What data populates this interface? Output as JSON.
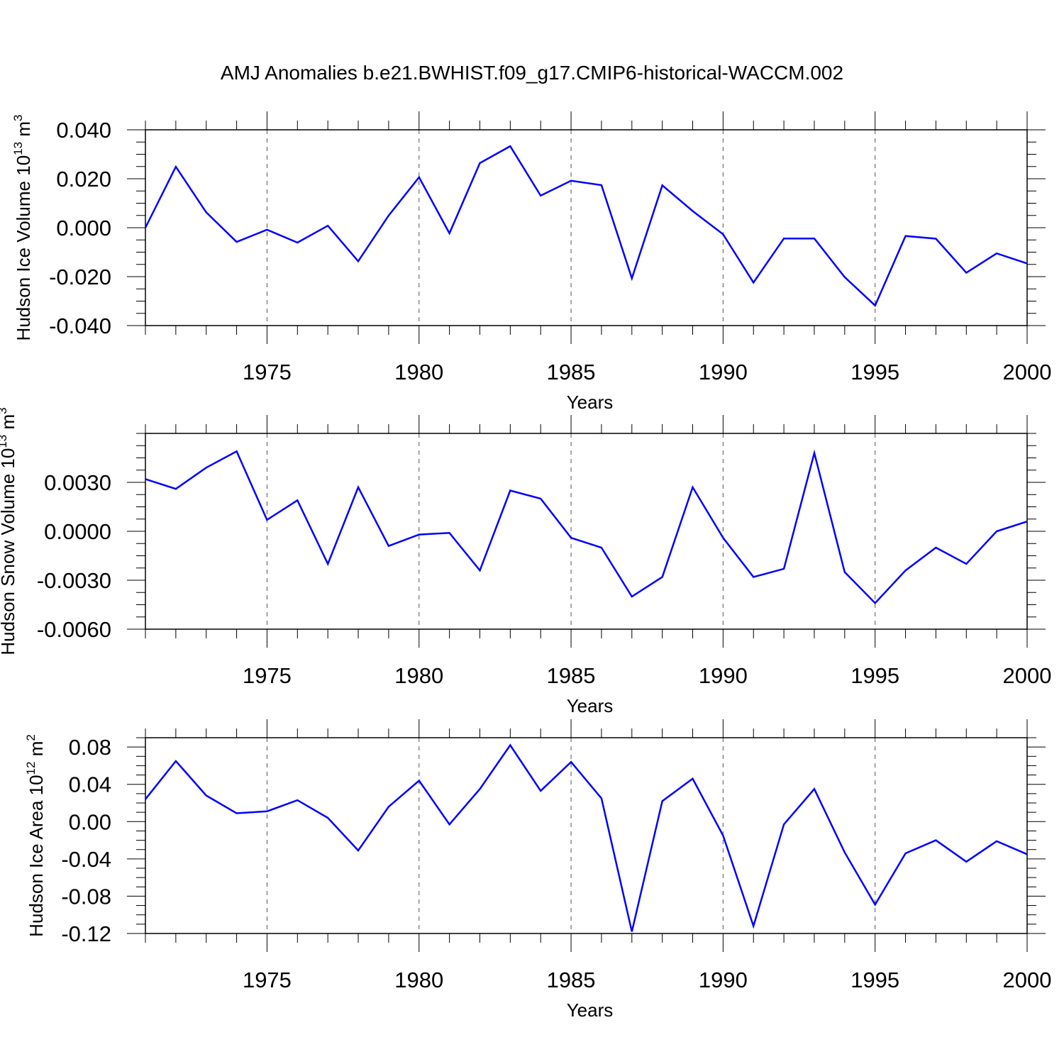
{
  "title": "AMJ Anomalies b.e21.BWHIST.f09_g17.CMIP6-historical-WACCM.002",
  "colors": {
    "line": "#0000ff",
    "axis": "#000000",
    "grid": "#555555",
    "background": "#ffffff"
  },
  "chart_data": [
    {
      "type": "line",
      "ylabel": "Hudson Ice Volume 10",
      "ylabel_exp": "13",
      "ylabel_unit": " m",
      "ylabel_unit_exp": "3",
      "xlabel": "Years",
      "xlim": [
        1971,
        2000
      ],
      "ylim": [
        -0.04,
        0.04
      ],
      "yticks": [
        -0.04,
        -0.02,
        0.0,
        0.02,
        0.04
      ],
      "ytick_labels": [
        "-0.040",
        "-0.020",
        "0.000",
        "0.020",
        "0.040"
      ],
      "xticks": [
        1975,
        1980,
        1985,
        1990,
        1995,
        2000
      ],
      "xtick_labels": [
        "1975",
        "1980",
        "1985",
        "1990",
        "1995",
        "2000"
      ],
      "grid": "vertical dashed at major x ticks",
      "x": [
        1971,
        1972,
        1973,
        1974,
        1975,
        1976,
        1977,
        1978,
        1979,
        1980,
        1981,
        1982,
        1983,
        1984,
        1985,
        1986,
        1987,
        1988,
        1989,
        1990,
        1991,
        1992,
        1993,
        1994,
        1995,
        1996,
        1997,
        1998,
        1999,
        2000
      ],
      "values": [
        0.0,
        0.0249,
        0.0063,
        -0.0058,
        -0.0008,
        -0.0061,
        0.0008,
        -0.0137,
        0.005,
        0.0206,
        -0.0023,
        0.0264,
        0.0333,
        0.0131,
        0.0192,
        0.0174,
        -0.0207,
        0.0173,
        0.0068,
        -0.0027,
        -0.0224,
        -0.0044,
        -0.0044,
        -0.0202,
        -0.0318,
        -0.0034,
        -0.0045,
        -0.0184,
        -0.0105,
        -0.0146
      ]
    },
    {
      "type": "line",
      "ylabel": "Hudson Snow Volume 10",
      "ylabel_exp": "13",
      "ylabel_unit": " m",
      "ylabel_unit_exp": "3",
      "xlabel": "Years",
      "xlim": [
        1971,
        2000
      ],
      "ylim": [
        -0.006,
        0.006
      ],
      "yticks": [
        -0.006,
        -0.003,
        0.0,
        0.003
      ],
      "ytick_labels": [
        "-0.0060",
        "-0.0030",
        "0.0000",
        "0.0030"
      ],
      "xticks": [
        1975,
        1980,
        1985,
        1990,
        1995,
        2000
      ],
      "xtick_labels": [
        "1975",
        "1980",
        "1985",
        "1990",
        "1995",
        "2000"
      ],
      "grid": "vertical dashed at major x ticks",
      "x": [
        1971,
        1972,
        1973,
        1974,
        1975,
        1976,
        1977,
        1978,
        1979,
        1980,
        1981,
        1982,
        1983,
        1984,
        1985,
        1986,
        1987,
        1988,
        1989,
        1990,
        1991,
        1992,
        1993,
        1994,
        1995,
        1996,
        1997,
        1998,
        1999,
        2000
      ],
      "values": [
        0.0032,
        0.0026,
        0.0039,
        0.0049,
        0.0007,
        0.0019,
        -0.002,
        0.0027,
        -0.0009,
        -0.0002,
        -0.0001,
        -0.0024,
        0.0025,
        0.002,
        -0.0004,
        -0.001,
        -0.004,
        -0.0028,
        0.0027,
        -0.0004,
        -0.0028,
        -0.0023,
        0.0048,
        -0.0025,
        -0.0044,
        -0.0024,
        -0.001,
        -0.002,
        0.0,
        0.0006
      ]
    },
    {
      "type": "line",
      "ylabel": "Hudson Ice Area 10",
      "ylabel_exp": "12",
      "ylabel_unit": " m",
      "ylabel_unit_exp": "2",
      "xlabel": "Years",
      "xlim": [
        1971,
        2000
      ],
      "ylim": [
        -0.12,
        0.09
      ],
      "yticks": [
        -0.12,
        -0.08,
        -0.04,
        0.0,
        0.04,
        0.08
      ],
      "ytick_labels": [
        "-0.12",
        "-0.08",
        "-0.04",
        "0.00",
        "0.04",
        "0.08"
      ],
      "xticks": [
        1975,
        1980,
        1985,
        1990,
        1995,
        2000
      ],
      "xtick_labels": [
        "1975",
        "1980",
        "1985",
        "1990",
        "1995",
        "2000"
      ],
      "grid": "vertical dashed at major x ticks",
      "x": [
        1971,
        1972,
        1973,
        1974,
        1975,
        1976,
        1977,
        1978,
        1979,
        1980,
        1981,
        1982,
        1983,
        1984,
        1985,
        1986,
        1987,
        1988,
        1989,
        1990,
        1991,
        1992,
        1993,
        1994,
        1995,
        1996,
        1997,
        1998,
        1999,
        2000
      ],
      "values": [
        0.024,
        0.065,
        0.028,
        0.009,
        0.011,
        0.023,
        0.004,
        -0.031,
        0.016,
        0.044,
        -0.003,
        0.035,
        0.082,
        0.033,
        0.064,
        0.025,
        -0.118,
        0.022,
        0.046,
        -0.015,
        -0.112,
        -0.003,
        0.035,
        -0.033,
        -0.089,
        -0.034,
        -0.02,
        -0.043,
        -0.021,
        -0.035
      ]
    }
  ]
}
